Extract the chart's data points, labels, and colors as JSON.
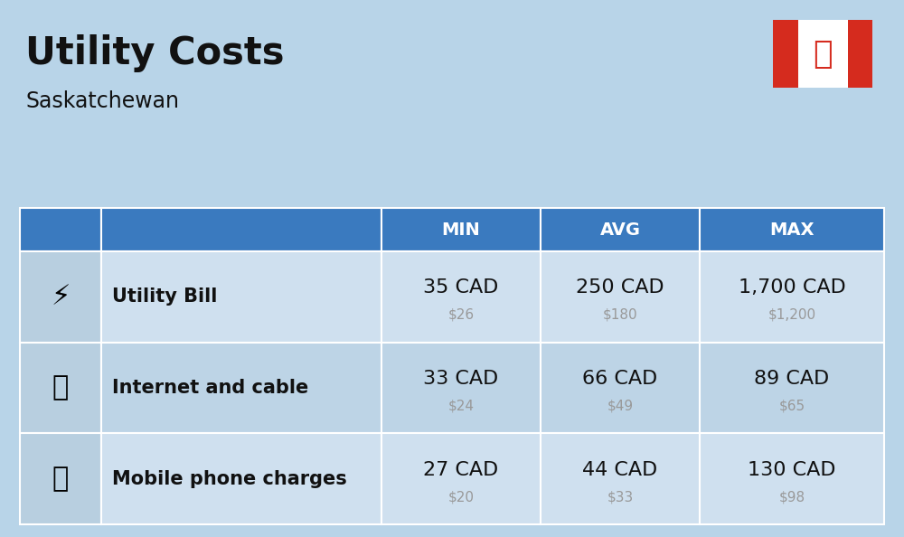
{
  "title": "Utility Costs",
  "subtitle": "Saskatchewan",
  "background_color": "#b8d4e8",
  "header_bg_color": "#3a7abf",
  "header_text_color": "#ffffff",
  "row_bg_colors": [
    "#cfe0ef",
    "#bdd4e6",
    "#cfe0ef"
  ],
  "icon_col_bg": "#b8cfe0",
  "divider_color": "#ffffff",
  "flag_red": "#d52b1e",
  "rows": [
    {
      "label": "Utility Bill",
      "min_cad": "35 CAD",
      "min_usd": "$26",
      "avg_cad": "250 CAD",
      "avg_usd": "$180",
      "max_cad": "1,700 CAD",
      "max_usd": "$1,200"
    },
    {
      "label": "Internet and cable",
      "min_cad": "33 CAD",
      "min_usd": "$24",
      "avg_cad": "66 CAD",
      "avg_usd": "$49",
      "max_cad": "89 CAD",
      "max_usd": "$65"
    },
    {
      "label": "Mobile phone charges",
      "min_cad": "27 CAD",
      "min_usd": "$20",
      "avg_cad": "44 CAD",
      "avg_usd": "$33",
      "max_cad": "130 CAD",
      "max_usd": "$98"
    }
  ],
  "cad_fontsize": 16,
  "usd_fontsize": 11,
  "label_fontsize": 15,
  "header_fontsize": 14,
  "title_fontsize": 30,
  "subtitle_fontsize": 17,
  "usd_color": "#999999",
  "text_color": "#111111"
}
